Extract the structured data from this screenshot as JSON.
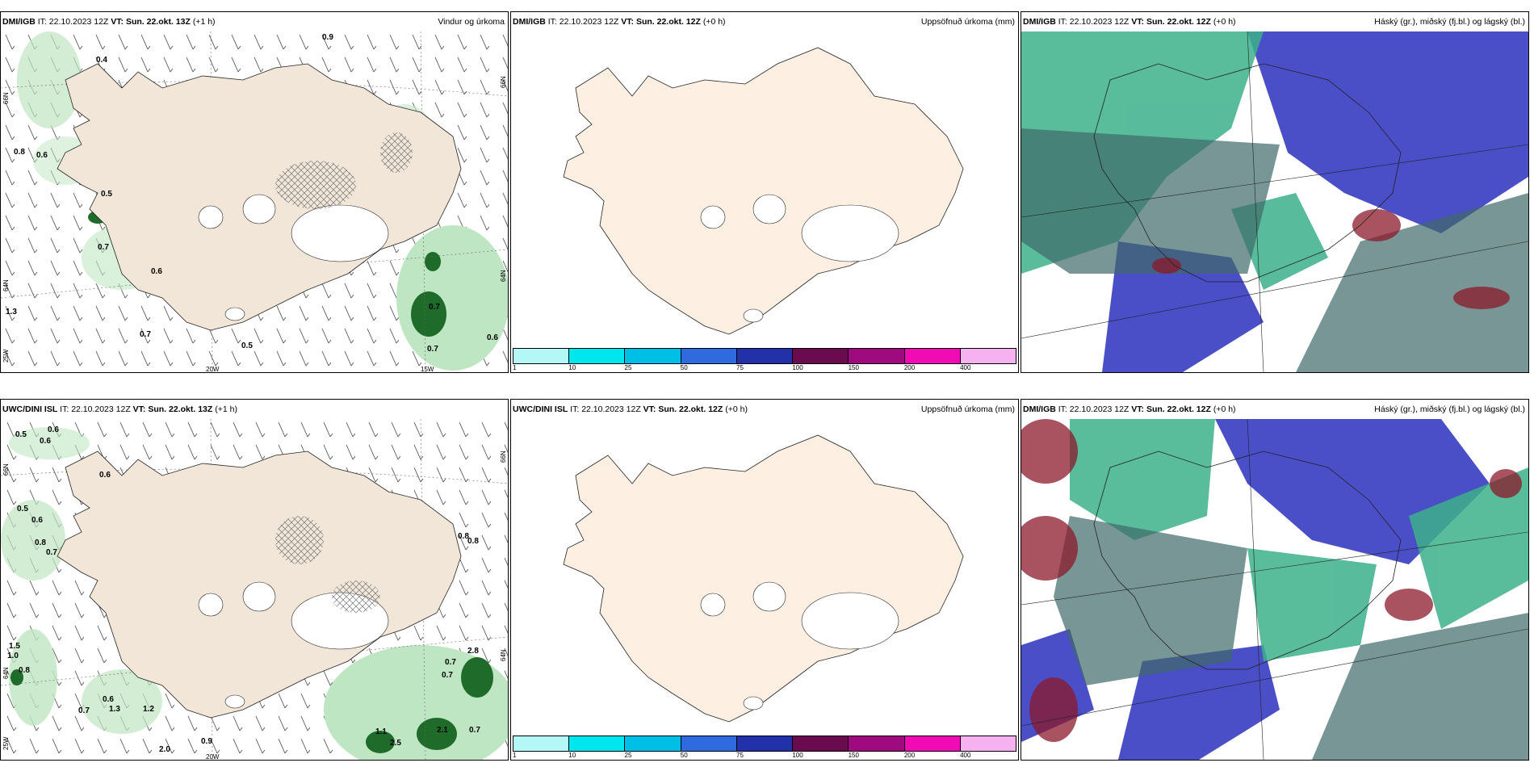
{
  "panels": [
    {
      "model": "DMI/IGB",
      "it_label": "IT:",
      "it_value": "22.10.2023 12Z",
      "vt_label": "VT:",
      "vt_value": "Sun. 22.okt. 13Z",
      "lead": "(+1 h)",
      "product": "Vindur og úrkoma",
      "axis": {
        "lat_top": "66N",
        "lat_mid": "64N",
        "lon_left": "25W",
        "lon_mid": "20W",
        "lon_right": "15W",
        "lat_right_top": "66N",
        "lat_right_mid": "64N"
      },
      "labels": [
        "0.9",
        "0.4",
        "0.8",
        "0.6",
        "0.5",
        "0.7",
        "0.6",
        "0.7",
        "1.3",
        "0.7",
        "0.5",
        "0.7",
        "0.6"
      ]
    },
    {
      "model": "DMI/IGB",
      "it_label": "IT:",
      "it_value": "22.10.2023 12Z",
      "vt_label": "VT:",
      "vt_value": "Sun. 22.okt. 12Z",
      "lead": "(+0 h)",
      "product": "Uppsöfnuð úrkoma (mm)",
      "legend_ticks": [
        "1",
        "10",
        "25",
        "50",
        "75",
        "100",
        "150",
        "200",
        "400"
      ]
    },
    {
      "model": "DMI/IGB",
      "it_label": "IT:",
      "it_value": "22.10.2023 12Z",
      "vt_label": "VT:",
      "vt_value": "Sun. 22.okt. 12Z",
      "lead": "(+0 h)",
      "product": "Háský (gr.), miðský (fj.bl.) og lágský (bl.)"
    },
    {
      "model": "UWC/DINI ISL",
      "it_label": "IT:",
      "it_value": "22.10.2023 12Z",
      "vt_label": "VT:",
      "vt_value": "Sun. 22.okt. 13Z",
      "lead": "(+1 h)",
      "product": "",
      "axis": {
        "lat_top": "66N",
        "lat_mid": "64N",
        "lon_left": "25W",
        "lon_mid": "20W",
        "lat_right_top": "66N",
        "lat_right_mid": "64N"
      },
      "labels": [
        "0.5",
        "0.6",
        "0.6",
        "0.6",
        "0.5",
        "0.6",
        "0.8",
        "0.7",
        "0.8",
        "1.5",
        "1.0",
        "0.8",
        "0.7",
        "0.6",
        "1.3",
        "1.2",
        "0.7",
        "2.0",
        "0.9",
        "1.1",
        "2.5",
        "2.1",
        "0.7",
        "0.7",
        "2.8",
        "0.8"
      ]
    },
    {
      "model": "UWC/DINI ISL",
      "it_label": "IT:",
      "it_value": "22.10.2023 12Z",
      "vt_label": "VT:",
      "vt_value": "Sun. 22.okt. 12Z",
      "lead": "(+0 h)",
      "product": "Uppsöfnuð úrkoma (mm)",
      "legend_ticks": [
        "1",
        "10",
        "25",
        "50",
        "75",
        "100",
        "150",
        "200",
        "400"
      ]
    },
    {
      "model": "DMI/IGB",
      "it_label": "IT:",
      "it_value": "22.10.2023 12Z",
      "vt_label": "VT:",
      "vt_value": "Sun. 22.okt. 12Z",
      "lead": "(+0 h)",
      "product": "Háský (gr.), miðský (fj.bl.) og lágský (bl.)"
    }
  ],
  "colors": {
    "land": "#f2e6d8",
    "land_light": "#fdf0e3",
    "legend": [
      "#b3f7f7",
      "#00e6ef",
      "#00bfe6",
      "#2f6bdf",
      "#2230a9",
      "#6a0a4f",
      "#a00a7f",
      "#f00bb4",
      "#f5b1f0"
    ],
    "cloud_high": "#8aa0a0",
    "cloud_mid": "#3cb08a",
    "cloud_low": "#4a4ec7",
    "precip_green": "#1e8a2e"
  }
}
